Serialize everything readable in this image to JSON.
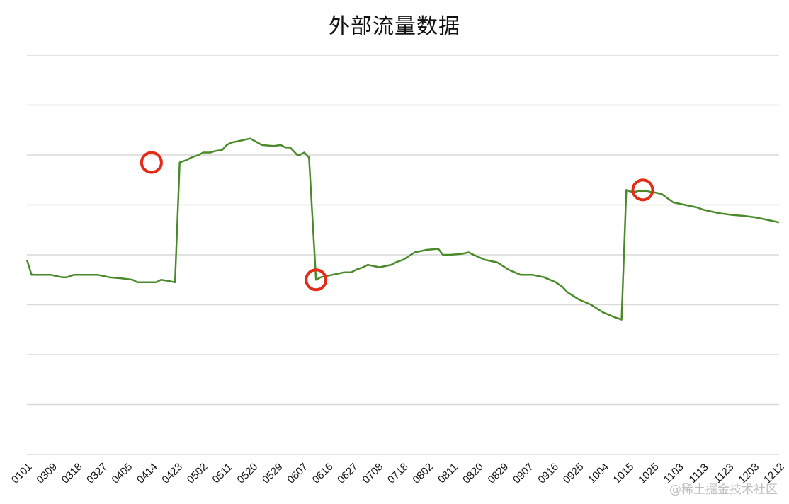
{
  "chart_data": {
    "type": "line",
    "title": "外部流量数据",
    "xlabel": "",
    "ylabel": "",
    "grid": true,
    "y_axis_labels_visible": false,
    "ylim": [
      0,
      8
    ],
    "tick_labels": [
      "0101",
      "0309",
      "0318",
      "0327",
      "0405",
      "0414",
      "0423",
      "0502",
      "0511",
      "0520",
      "0529",
      "0607",
      "0616",
      "0627",
      "0708",
      "0718",
      "0802",
      "0811",
      "0820",
      "0829",
      "0907",
      "0916",
      "0925",
      "1004",
      "1015",
      "1025",
      "1103",
      "1113",
      "1123",
      "1203",
      "1212"
    ],
    "series": [
      {
        "color": "#4a8a2a",
        "x": [
          0,
          0.2,
          1,
          1.5,
          1.7,
          2,
          2.3,
          3,
          3.5,
          4,
          4.5,
          4.7,
          5,
          5.5,
          5.7,
          6,
          6.3,
          6.5,
          6.8,
          7,
          7.3,
          7.5,
          7.8,
          8,
          8.3,
          8.5,
          8.7,
          9,
          9.5,
          10,
          10.5,
          10.8,
          11,
          11.2,
          11.5,
          11.6,
          11.8,
          12,
          12.3,
          12.5,
          13,
          13.5,
          13.8,
          14,
          14.3,
          14.5,
          15,
          15.5,
          15.7,
          16,
          16.5,
          17,
          17.5,
          17.7,
          18,
          18.5,
          18.8,
          19,
          19.5,
          20,
          20.5,
          21,
          21.5,
          22,
          22.5,
          22.8,
          23,
          23.5,
          24,
          24.5,
          25,
          25.3,
          25.5,
          25.8,
          26,
          26.2,
          26.4,
          26.6,
          26.7,
          27,
          27.5,
          28,
          28.5,
          28.8,
          29,
          29.3,
          29.5,
          30,
          30.5,
          31,
          31.5,
          32
        ],
        "values": [
          3.9,
          3.6,
          3.6,
          3.55,
          3.55,
          3.6,
          3.6,
          3.6,
          3.55,
          3.53,
          3.5,
          3.45,
          3.45,
          3.45,
          3.5,
          3.48,
          3.45,
          5.85,
          5.9,
          5.95,
          6.0,
          6.05,
          6.05,
          6.08,
          6.1,
          6.2,
          6.25,
          6.28,
          6.33,
          6.2,
          6.18,
          6.2,
          6.15,
          6.15,
          6.0,
          6.0,
          6.05,
          5.95,
          3.5,
          3.55,
          3.6,
          3.65,
          3.65,
          3.7,
          3.75,
          3.8,
          3.75,
          3.8,
          3.85,
          3.9,
          4.05,
          4.1,
          4.12,
          4.0,
          4.0,
          4.02,
          4.05,
          4.0,
          3.9,
          3.85,
          3.7,
          3.6,
          3.6,
          3.55,
          3.45,
          3.35,
          3.25,
          3.1,
          3.0,
          2.85,
          2.75,
          2.7,
          5.3,
          5.25,
          5.28,
          5.28,
          5.28,
          5.25,
          5.25,
          5.22,
          5.05,
          5.0,
          4.95,
          4.9,
          4.88,
          4.85,
          4.83,
          4.8,
          4.78,
          4.75,
          4.7,
          4.65
        ]
      }
    ],
    "annotations": [
      {
        "type": "circle",
        "color": "#e32b17",
        "x": 5.3,
        "y": 5.85
      },
      {
        "type": "circle",
        "color": "#e32b17",
        "x": 12.3,
        "y": 3.5
      },
      {
        "type": "circle",
        "color": "#e32b17",
        "x": 26.2,
        "y": 5.3
      }
    ]
  },
  "watermark": "@稀土掘金技术社区"
}
